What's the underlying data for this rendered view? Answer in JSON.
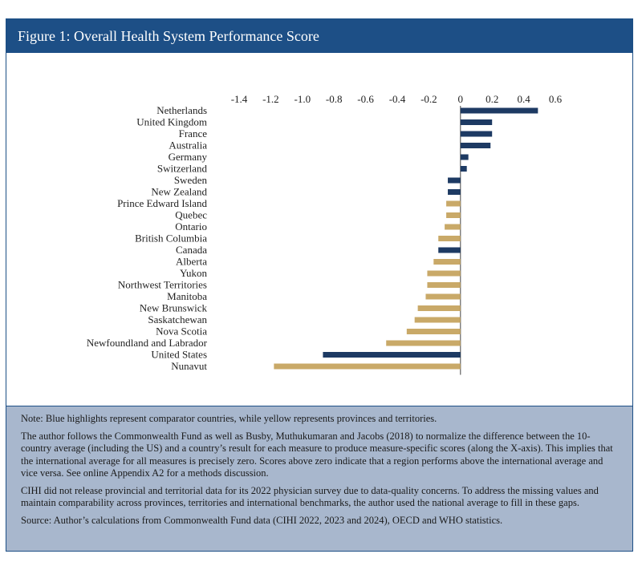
{
  "title": "Figure 1: Overall Health System Performance Score",
  "chart_data": {
    "type": "bar",
    "orientation": "horizontal",
    "x_ticks": [
      "-1.4",
      "-1.2",
      "-1.0",
      "-0.8",
      "-0.6",
      "-0.4",
      "-0.2",
      "0",
      "0.2",
      "0.4",
      "0.6"
    ],
    "xlim": [
      -1.4,
      0.6
    ],
    "grid": false,
    "colors": {
      "country": "#1d3a63",
      "province": "#c9a968"
    },
    "categories": [
      "Netherlands",
      "United Kingdom",
      "France",
      "Australia",
      "Germany",
      "Switzerland",
      "Sweden",
      "New Zealand",
      "Prince Edward Island",
      "Quebec",
      "Ontario",
      "British Columbia",
      "Canada",
      "Alberta",
      "Yukon",
      "Northwest Territories",
      "Manitoba",
      "New Brunswick",
      "Saskatchewan",
      "Nova Scotia",
      "Newfoundland and Labrador",
      "United States",
      "Nunavut"
    ],
    "values": [
      0.49,
      0.2,
      0.2,
      0.19,
      0.05,
      0.04,
      -0.08,
      -0.08,
      -0.09,
      -0.09,
      -0.1,
      -0.14,
      -0.14,
      -0.17,
      -0.21,
      -0.21,
      -0.22,
      -0.27,
      -0.29,
      -0.34,
      -0.47,
      -0.87,
      -1.18
    ],
    "groups": [
      "country",
      "country",
      "country",
      "country",
      "country",
      "country",
      "country",
      "country",
      "province",
      "province",
      "province",
      "province",
      "country",
      "province",
      "province",
      "province",
      "province",
      "province",
      "province",
      "province",
      "province",
      "country",
      "province"
    ]
  },
  "notes": {
    "p1": "Note: Blue highlights represent comparator countries, while yellow represents provinces and territories.",
    "p2": "The author follows the Commonwealth Fund as well as Busby, Muthukumaran and Jacobs (2018) to normalize the difference between the 10-country average (including the US) and a country’s result for each measure to produce measure-specific scores (along the X-axis). This implies that the international average for all measures is precisely zero. Scores above zero indicate that a region performs above the international average and vice versa. See online Appendix A2 for a methods discussion.",
    "p3": "CIHI did not release provincial and territorial data for its 2022 physician survey due to data-quality concerns. To address the missing values and maintain comparability across provinces, territories and international benchmarks, the author used the national average to fill in these gaps.",
    "p4": "Source: Author’s calculations from Commonwealth Fund data (CIHI 2022, 2023 and 2024), OECD and WHO statistics."
  }
}
